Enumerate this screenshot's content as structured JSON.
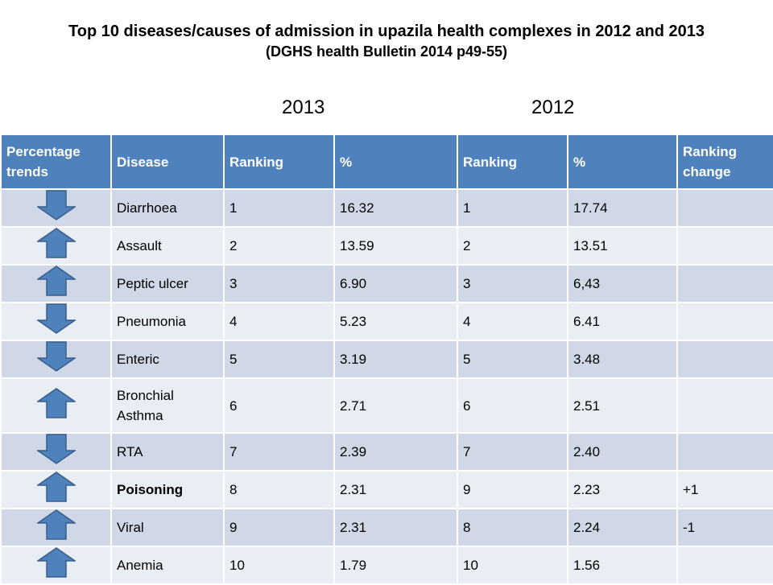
{
  "title": "Top 10 diseases/causes of admission in upazila health complexes in 2012 and 2013",
  "subtitle": "(DGHS health Bulletin 2014  p49-55)",
  "year_left": "2013",
  "year_right": "2012",
  "colors": {
    "header": "#4f81bd",
    "row_odd": "#d0d8e8",
    "row_even": "#e9edf4",
    "arrow": "#4f81bd"
  },
  "table": {
    "headers": [
      "Percentage trends",
      "Disease",
      "Ranking",
      "%",
      "Ranking",
      "%",
      "Ranking change"
    ],
    "rows": [
      {
        "trend": "down",
        "disease": "Diarrhoea",
        "rank_2013": "1",
        "pct_2013": "16.32",
        "rank_2012": "1",
        "pct_2012": "17.74",
        "change": ""
      },
      {
        "trend": "up",
        "disease": "Assault",
        "rank_2013": "2",
        "pct_2013": "13.59",
        "rank_2012": "2",
        "pct_2012": "13.51",
        "change": ""
      },
      {
        "trend": "up",
        "disease": "Peptic ulcer",
        "rank_2013": "3",
        "pct_2013": "6.90",
        "rank_2012": "3",
        "pct_2012": "6,43",
        "change": ""
      },
      {
        "trend": "down",
        "disease": "Pneumonia",
        "rank_2013": "4",
        "pct_2013": "5.23",
        "rank_2012": "4",
        "pct_2012": "6.41",
        "change": ""
      },
      {
        "trend": "down",
        "disease": "Enteric",
        "rank_2013": "5",
        "pct_2013": "3.19",
        "rank_2012": "5",
        "pct_2012": "3.48",
        "change": ""
      },
      {
        "trend": "up",
        "disease": "Bronchial Asthma",
        "rank_2013": "6",
        "pct_2013": "2.71",
        "rank_2012": "6",
        "pct_2012": "2.51",
        "change": ""
      },
      {
        "trend": "down",
        "disease": "RTA",
        "rank_2013": "7",
        "pct_2013": "2.39",
        "rank_2012": "7",
        "pct_2012": "2.40",
        "change": ""
      },
      {
        "trend": "up",
        "disease": "Poisoning",
        "rank_2013": "8",
        "pct_2013": "2.31",
        "rank_2012": "9",
        "pct_2012": "2.23",
        "change": "+1"
      },
      {
        "trend": "up",
        "disease": "Viral",
        "rank_2013": "9",
        "pct_2013": "2.31",
        "rank_2012": "8",
        "pct_2012": "2.24",
        "change": "-1"
      },
      {
        "trend": "up",
        "disease": "Anemia",
        "rank_2013": "10",
        "pct_2013": "1.79",
        "rank_2012": "10",
        "pct_2012": "1.56",
        "change": ""
      }
    ]
  }
}
